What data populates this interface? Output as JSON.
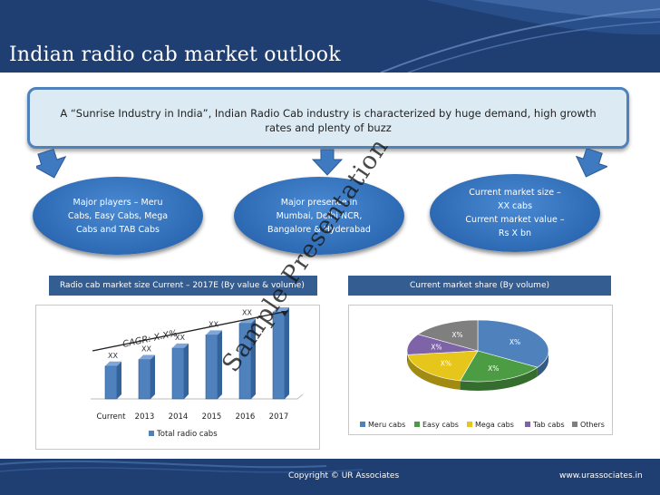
{
  "slide": {
    "title": "Indian radio cab market outlook",
    "banner_text": "A “Sunrise Industry in India”, Indian Radio Cab industry is characterized by huge demand, high growth rates and plenty of buzz",
    "ovals": [
      {
        "text": "Major players – Meru\nCabs, Easy Cabs, Mega\nCabs and TAB Cabs"
      },
      {
        "text": "Major presence in\nMumbai, Delhi NCR,\nBangalore & Hyderabad"
      },
      {
        "text": "Current market size –\nXX cabs\nCurrent market value –\nRs X bn"
      }
    ],
    "watermark": "Sample Presentation",
    "footer": {
      "copyright": "Copyright © UR Associates",
      "website": "www.urassociates.in"
    }
  },
  "colors": {
    "header_bg": "#1f3f73",
    "accent_blue": "#4f81bd",
    "oval_blue": "#2d6ab3",
    "panel_head": "#345d92"
  },
  "chart_data": [
    {
      "type": "bar",
      "title": "Radio cab market size Current – 2017E (By  value & volume)",
      "categories": [
        "Current",
        "2013",
        "2014",
        "2015",
        "2016",
        "2017"
      ],
      "data_labels": [
        "XX",
        "XX",
        "XX",
        "XX",
        "XX",
        "XX"
      ],
      "values": [
        1.0,
        1.2,
        1.55,
        1.95,
        2.3,
        2.65
      ],
      "series": [
        {
          "name": "Total radio cabs",
          "color": "#4f81bd"
        }
      ],
      "annotation": "CAGR:  X.X%",
      "grid": false,
      "legend": "bottom"
    },
    {
      "type": "pie",
      "title": "Current market share (By volume)",
      "labels": [
        "Meru cabs",
        "Easy cabs",
        "Mega cabs",
        "Tab cabs",
        "Others"
      ],
      "slice_labels": [
        "X%",
        "X%",
        "X%",
        "X%",
        "X%"
      ],
      "values": [
        34,
        20,
        19,
        11,
        16
      ],
      "colors": [
        "#4f81bd",
        "#4b9c43",
        "#e6c61b",
        "#7f63a8",
        "#7f7f7f"
      ],
      "legend": "bottom"
    }
  ]
}
